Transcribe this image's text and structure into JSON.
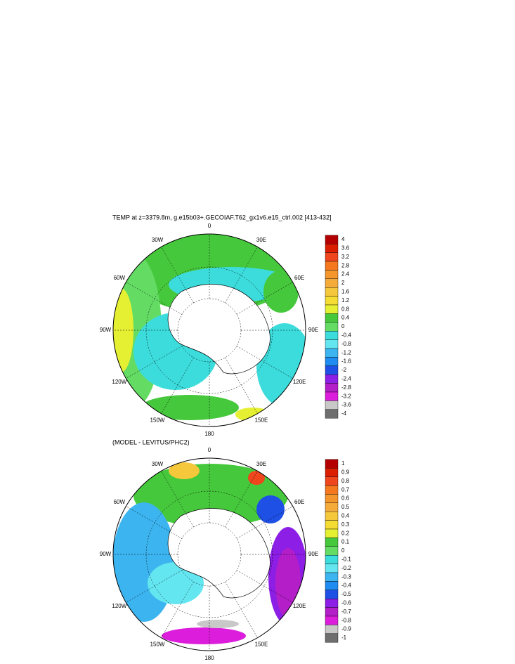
{
  "panels": [
    {
      "title": "TEMP at z=3379.8m, g.e15b03+.GECOIAF.T62_gx1v6.e15_ctrl.002 [413-432]",
      "lon_labels": [
        "0",
        "30E",
        "60E",
        "90E",
        "120E",
        "150E",
        "180",
        "150W",
        "120W",
        "90W",
        "60W",
        "30W"
      ],
      "colorbar": {
        "labels": [
          "4",
          "3.6",
          "3.2",
          "2.8",
          "2.4",
          "2",
          "1.6",
          "1.2",
          "0.8",
          "0.4",
          "0",
          "-0.4",
          "-0.8",
          "-1.2",
          "-1.6",
          "-2",
          "-2.4",
          "-2.8",
          "-3.2",
          "-3.6",
          "-4"
        ],
        "colors": [
          "#b40000",
          "#dc1e00",
          "#f0461e",
          "#f5781e",
          "#f5962d",
          "#f5aa3c",
          "#f5c83c",
          "#f5dc32",
          "#e6f032",
          "#46c83c",
          "#64dc64",
          "#3cdcdc",
          "#64e6f0",
          "#3cb4f0",
          "#1e8cf0",
          "#1e50e6",
          "#8c1ee6",
          "#b41ec8",
          "#dc1edc",
          "#c8c8c8",
          "#6e6e6e"
        ]
      }
    },
    {
      "title": "(MODEL - LEVITUS/PHC2)",
      "lon_labels": [
        "0",
        "30E",
        "60E",
        "90E",
        "120E",
        "150E",
        "180",
        "150W",
        "120W",
        "90W",
        "60W",
        "30W"
      ],
      "colorbar": {
        "labels": [
          "1",
          "0.9",
          "0.8",
          "0.7",
          "0.6",
          "0.5",
          "0.4",
          "0.3",
          "0.2",
          "0.1",
          "0",
          "-0.1",
          "-0.2",
          "-0.3",
          "-0.4",
          "-0.5",
          "-0.6",
          "-0.7",
          "-0.8",
          "-0.9",
          "-1"
        ],
        "colors": [
          "#b40000",
          "#dc1e00",
          "#f0461e",
          "#f5781e",
          "#f5962d",
          "#f5aa3c",
          "#f5c83c",
          "#f5dc32",
          "#e6f032",
          "#46c83c",
          "#64dc64",
          "#3cdcdc",
          "#64e6f0",
          "#3cb4f0",
          "#1e8cf0",
          "#1e50e6",
          "#8c1ee6",
          "#b41ec8",
          "#dc1edc",
          "#c8c8c8",
          "#6e6e6e"
        ]
      }
    }
  ]
}
